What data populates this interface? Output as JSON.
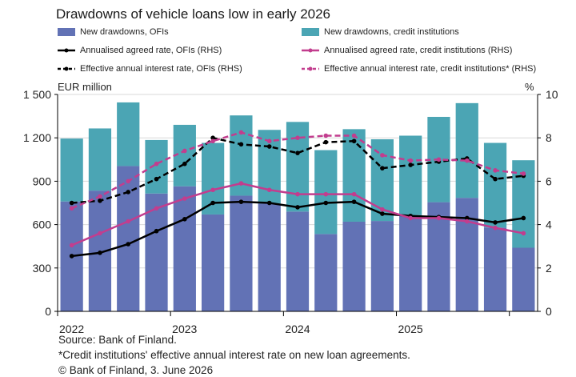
{
  "title": "Drawdowns of vehicle loans low in early 2026",
  "chart_data": {
    "type": "bar+line",
    "title": "Drawdowns of vehicle loans low in early 2026",
    "left_axis_label": "EUR million",
    "right_axis_label": "%",
    "left_ylim": [
      0,
      1500
    ],
    "right_ylim": [
      0,
      10
    ],
    "left_ticks": [
      "0",
      "300",
      "600",
      "900",
      "1 200",
      "1 500"
    ],
    "right_ticks": [
      "0",
      "2",
      "4",
      "6",
      "8",
      "10"
    ],
    "x_year_labels": [
      "2022",
      "2023",
      "2024",
      "2025"
    ],
    "categories": [
      "2022Q1",
      "2022Q2",
      "2022Q3",
      "2022Q4",
      "2023Q1",
      "2023Q2",
      "2023Q3",
      "2023Q4",
      "2024Q1",
      "2024Q2",
      "2024Q3",
      "2024Q4",
      "2025Q1",
      "2025Q2",
      "2025Q3",
      "2025Q4",
      "2026Q1"
    ],
    "stacked_series": [
      {
        "name": "New drawdowns, OFIs",
        "color": "#6272b5",
        "values": [
          760,
          835,
          1005,
          815,
          865,
          670,
          800,
          745,
          690,
          535,
          620,
          625,
          665,
          755,
          785,
          580,
          440
        ]
      },
      {
        "name": "New drawdowns, credit institutions",
        "color": "#4ba5b4",
        "values": [
          435,
          430,
          440,
          370,
          425,
          495,
          555,
          510,
          620,
          580,
          640,
          565,
          550,
          590,
          655,
          585,
          605
        ]
      }
    ],
    "line_series": [
      {
        "name": "Annualised agreed rate, OFIs (RHS)",
        "color": "#000000",
        "dashed": false,
        "values": [
          2.55,
          2.7,
          3.1,
          3.7,
          4.25,
          5.0,
          5.05,
          5.0,
          4.8,
          5.0,
          5.05,
          4.5,
          4.4,
          4.35,
          4.3,
          4.1,
          4.3
        ]
      },
      {
        "name": "Annualised agreed rate, credit institutions (RHS)",
        "color": "#c23d8e",
        "dashed": false,
        "values": [
          3.05,
          3.6,
          4.15,
          4.75,
          5.2,
          5.6,
          5.9,
          5.6,
          5.4,
          5.4,
          5.4,
          4.7,
          4.3,
          4.3,
          4.15,
          3.85,
          3.6
        ]
      },
      {
        "name": "Effective annual interest rate, OFIs (RHS)",
        "color": "#000000",
        "dashed": true,
        "values": [
          5.0,
          5.1,
          5.5,
          6.1,
          6.8,
          8.0,
          7.7,
          7.6,
          7.3,
          7.8,
          7.85,
          6.6,
          6.75,
          6.9,
          7.05,
          6.1,
          6.25
        ]
      },
      {
        "name": "Effective annual interest rate, credit institutions* (RHS)",
        "color": "#c23d8e",
        "dashed": true,
        "values": [
          4.75,
          5.3,
          6.0,
          6.8,
          7.4,
          7.85,
          8.25,
          7.85,
          8.0,
          8.1,
          8.1,
          7.2,
          6.95,
          7.0,
          6.95,
          6.5,
          6.35
        ]
      }
    ]
  },
  "legend": {
    "bar_ofi": "New drawdowns, OFIs",
    "bar_ci": "New drawdowns, credit institutions",
    "line_ofi": "Annualised agreed rate, OFIs (RHS)",
    "line_ci": "Annualised agreed rate, credit institutions (RHS)",
    "eff_ofi": "Effective annual interest rate, OFIs (RHS)",
    "eff_ci": "Effective annual interest rate, credit institutions* (RHS)"
  },
  "footer": {
    "source": "Source: Bank of Finland.",
    "note": "*Credit institutions' effective annual interest rate on new loan agreements.",
    "copyright": "© Bank of Finland, 3. June 2026"
  }
}
